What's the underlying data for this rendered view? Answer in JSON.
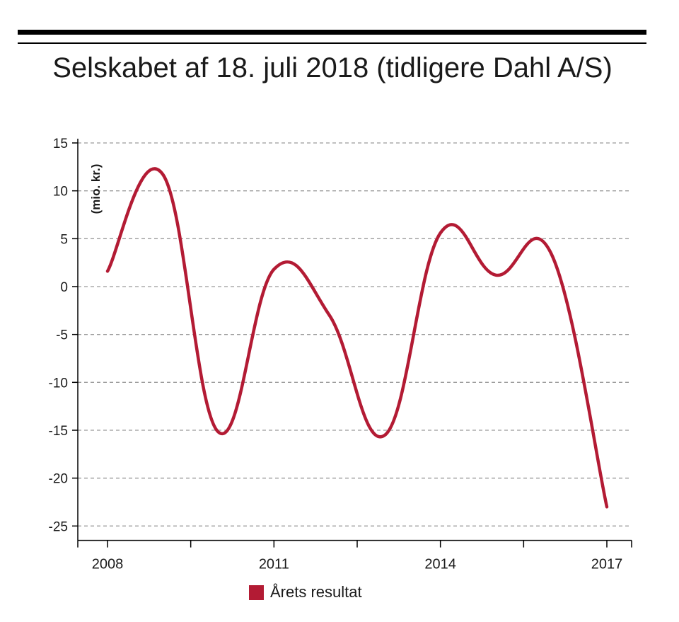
{
  "chart_data": {
    "type": "line",
    "title": "Selskabet af 18. juli 2018 (tidligere Dahl A/S)",
    "ylabel": "(mio. kr.)",
    "xlabel": "",
    "x": [
      2008,
      2009,
      2010,
      2011,
      2012,
      2013,
      2014,
      2015,
      2016,
      2017
    ],
    "x_tick_labels": [
      "2008",
      "2011",
      "2014",
      "2017"
    ],
    "x_tick_values": [
      2008,
      2011,
      2014,
      2017
    ],
    "y_tick_values": [
      15,
      10,
      5,
      0,
      -5,
      -10,
      -15,
      -20,
      -25
    ],
    "y_tick_labels": [
      "15",
      "10",
      "5",
      "0",
      "-5",
      "-10",
      "-15",
      "-20",
      "-25"
    ],
    "ylim": [
      -26.5,
      15
    ],
    "xlim": [
      2008,
      2017
    ],
    "grid": true,
    "legend": "bottom",
    "series": [
      {
        "name": "Årets resultat",
        "color": "#b31b34",
        "values": [
          1.6,
          11.7,
          -15.2,
          1.8,
          -3.0,
          -15.5,
          5.6,
          1.2,
          3.4,
          -23.0
        ]
      }
    ]
  }
}
